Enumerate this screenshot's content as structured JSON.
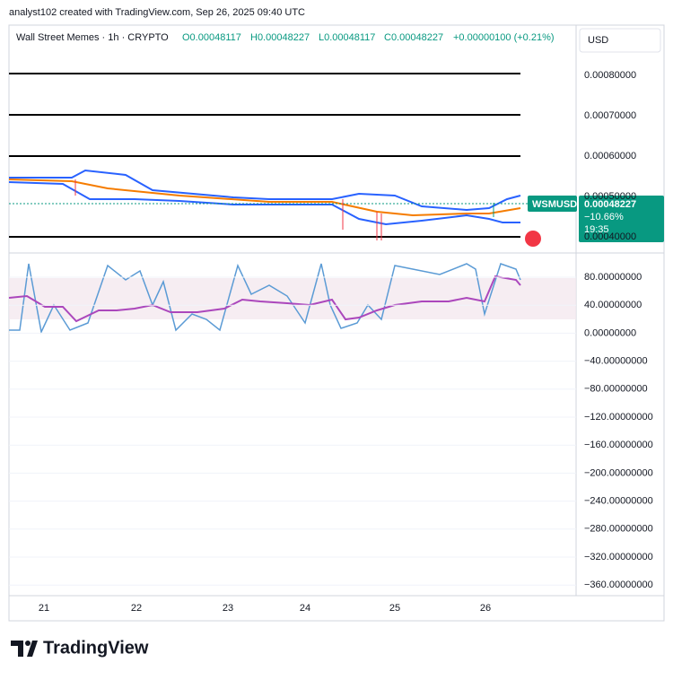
{
  "header": {
    "caption": "analyst102 created with TradingView.com, Sep 26, 2025 09:40 UTC"
  },
  "legend": {
    "symbol": "Wall Street Memes · 1h · CRYPTO",
    "open": "O0.00048117",
    "high": "H0.00048227",
    "low": "L0.00048117",
    "close": "C0.00048227",
    "change": "+0.00000100 (+0.21%)"
  },
  "currency": "USD",
  "price_axis": [
    "0.00080000",
    "0.00070000",
    "0.00060000",
    "0.00050000",
    "0.00040000"
  ],
  "badge": {
    "symbol": "WSMUSD",
    "price": "0.00048227",
    "change": "−10.66%",
    "countdown": "19:35"
  },
  "oscillator_axis": [
    "80.00000000",
    "40.00000000",
    "0.00000000",
    "−40.00000000",
    "−80.00000000",
    "−120.00000000",
    "−160.00000000",
    "−200.00000000",
    "−240.00000000",
    "−280.00000000",
    "−320.00000000",
    "−360.00000000"
  ],
  "time_axis": [
    "21",
    "22",
    "23",
    "24",
    "25",
    "26"
  ],
  "footer": {
    "brand": "TradingView"
  }
}
